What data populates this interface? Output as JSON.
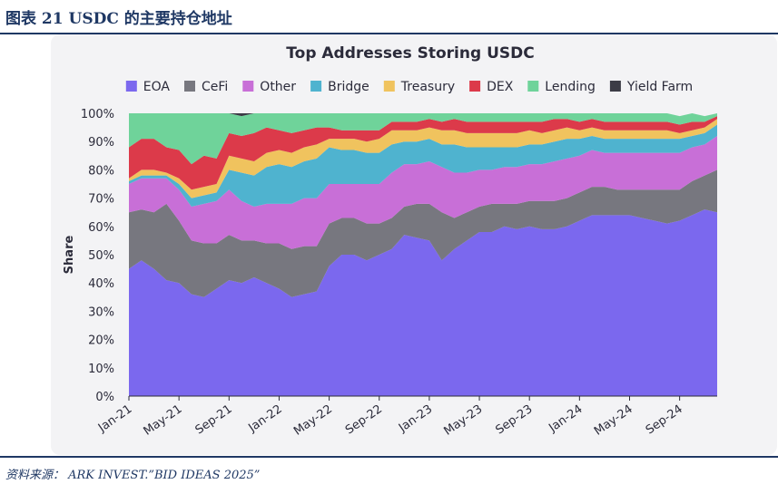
{
  "figure": {
    "label": "图表 21    USDC 的主要持仓地址",
    "source": "资料来源：    ARK INVEST.”BID IDEAS 2025”"
  },
  "chart_data": {
    "type": "area",
    "stacked": true,
    "title": "Top Addresses Storing USDC",
    "xlabel": "",
    "ylabel": "Share",
    "ylim": [
      0,
      100
    ],
    "y_unit": "%",
    "yticks": [
      "0%",
      "10%",
      "20%",
      "30%",
      "40%",
      "50%",
      "60%",
      "70%",
      "80%",
      "90%",
      "100%"
    ],
    "x": [
      "2021-01",
      "2021-02",
      "2021-03",
      "2021-04",
      "2021-05",
      "2021-06",
      "2021-07",
      "2021-08",
      "2021-09",
      "2021-10",
      "2021-11",
      "2021-12",
      "2022-01",
      "2022-02",
      "2022-03",
      "2022-04",
      "2022-05",
      "2022-06",
      "2022-07",
      "2022-08",
      "2022-09",
      "2022-10",
      "2022-11",
      "2022-12",
      "2023-01",
      "2023-02",
      "2023-03",
      "2023-04",
      "2023-05",
      "2023-06",
      "2023-07",
      "2023-08",
      "2023-09",
      "2023-10",
      "2023-11",
      "2023-12",
      "2024-01",
      "2024-02",
      "2024-03",
      "2024-04",
      "2024-05",
      "2024-06",
      "2024-07",
      "2024-08",
      "2024-09",
      "2024-10",
      "2024-11",
      "2024-12"
    ],
    "xtick_labels": [
      "Jan-21",
      "May-21",
      "Sep-21",
      "Jan-22",
      "May-22",
      "Sep-22",
      "Jan-23",
      "May-23",
      "Sep-23",
      "Jan-24",
      "May-24",
      "Sep-24"
    ],
    "legend_position": "top",
    "grid": false,
    "series": [
      {
        "name": "EOA",
        "color": "#7b68ee",
        "values": [
          45,
          48,
          45,
          41,
          40,
          36,
          35,
          38,
          41,
          40,
          42,
          40,
          38,
          35,
          36,
          37,
          46,
          50,
          50,
          48,
          50,
          52,
          57,
          56,
          55,
          48,
          52,
          55,
          58,
          58,
          60,
          59,
          60,
          59,
          59,
          60,
          62,
          64,
          64,
          64,
          64,
          63,
          62,
          61,
          62,
          64,
          66,
          65
        ]
      },
      {
        "name": "CeFi",
        "color": "#77777f",
        "values": [
          20,
          18,
          20,
          27,
          22,
          19,
          19,
          16,
          16,
          15,
          13,
          14,
          16,
          17,
          17,
          16,
          15,
          13,
          13,
          13,
          11,
          11,
          10,
          12,
          13,
          17,
          11,
          10,
          9,
          10,
          8,
          9,
          9,
          10,
          10,
          10,
          10,
          10,
          10,
          9,
          9,
          10,
          11,
          12,
          11,
          12,
          12,
          15
        ]
      },
      {
        "name": "Other",
        "color": "#c86fd7",
        "values": [
          10,
          11,
          12,
          9,
          11,
          12,
          14,
          15,
          16,
          14,
          12,
          14,
          14,
          16,
          17,
          17,
          14,
          12,
          12,
          14,
          14,
          16,
          15,
          14,
          15,
          16,
          16,
          14,
          13,
          12,
          13,
          13,
          13,
          13,
          14,
          14,
          13,
          13,
          12,
          13,
          13,
          13,
          13,
          13,
          13,
          12,
          11,
          12
        ]
      },
      {
        "name": "Bridge",
        "color": "#4fb3cf",
        "values": [
          1,
          1,
          1,
          1,
          2,
          3,
          3,
          3,
          7,
          10,
          11,
          13,
          14,
          13,
          13,
          14,
          13,
          12,
          12,
          11,
          11,
          10,
          8,
          8,
          8,
          8,
          10,
          9,
          8,
          8,
          7,
          7,
          7,
          7,
          7,
          7,
          6,
          5,
          5,
          5,
          5,
          5,
          5,
          5,
          5,
          4,
          4,
          4
        ]
      },
      {
        "name": "Treasury",
        "color": "#f0c35e",
        "values": [
          1,
          2,
          2,
          1,
          2,
          3,
          3,
          3,
          5,
          5,
          5,
          5,
          5,
          5,
          5,
          5,
          3,
          4,
          4,
          4,
          5,
          5,
          4,
          4,
          4,
          5,
          5,
          5,
          5,
          5,
          5,
          5,
          5,
          4,
          4,
          4,
          3,
          3,
          3,
          3,
          3,
          3,
          3,
          3,
          2,
          2,
          2,
          2
        ]
      },
      {
        "name": "DEX",
        "color": "#dc3a4a",
        "values": [
          11,
          11,
          11,
          9,
          10,
          9,
          11,
          9,
          8,
          8,
          10,
          9,
          7,
          7,
          6,
          6,
          4,
          3,
          3,
          4,
          3,
          3,
          3,
          3,
          3,
          3,
          4,
          4,
          4,
          4,
          4,
          4,
          3,
          4,
          4,
          3,
          3,
          3,
          3,
          3,
          3,
          3,
          3,
          3,
          3,
          3,
          2,
          1
        ]
      },
      {
        "name": "Lending",
        "color": "#6fd39a",
        "values": [
          12,
          9,
          9,
          12,
          13,
          18,
          15,
          16,
          7,
          7,
          7,
          5,
          6,
          7,
          6,
          5,
          5,
          6,
          6,
          6,
          6,
          3,
          3,
          3,
          2,
          3,
          2,
          3,
          3,
          3,
          3,
          3,
          3,
          3,
          2,
          2,
          3,
          2,
          3,
          3,
          3,
          3,
          3,
          3,
          3,
          3,
          2,
          1
        ]
      },
      {
        "name": "Yield Farm",
        "color": "#3c3c46",
        "values": [
          0,
          0,
          0,
          0,
          0,
          0,
          0,
          0,
          0,
          1,
          0,
          0,
          0,
          0,
          0,
          0,
          0,
          0,
          0,
          0,
          0,
          0,
          0,
          0,
          0,
          0,
          0,
          0,
          0,
          0,
          0,
          0,
          0,
          0,
          0,
          0,
          0,
          0,
          0,
          0,
          0,
          0,
          0,
          0,
          0,
          0,
          0,
          0
        ]
      }
    ]
  }
}
